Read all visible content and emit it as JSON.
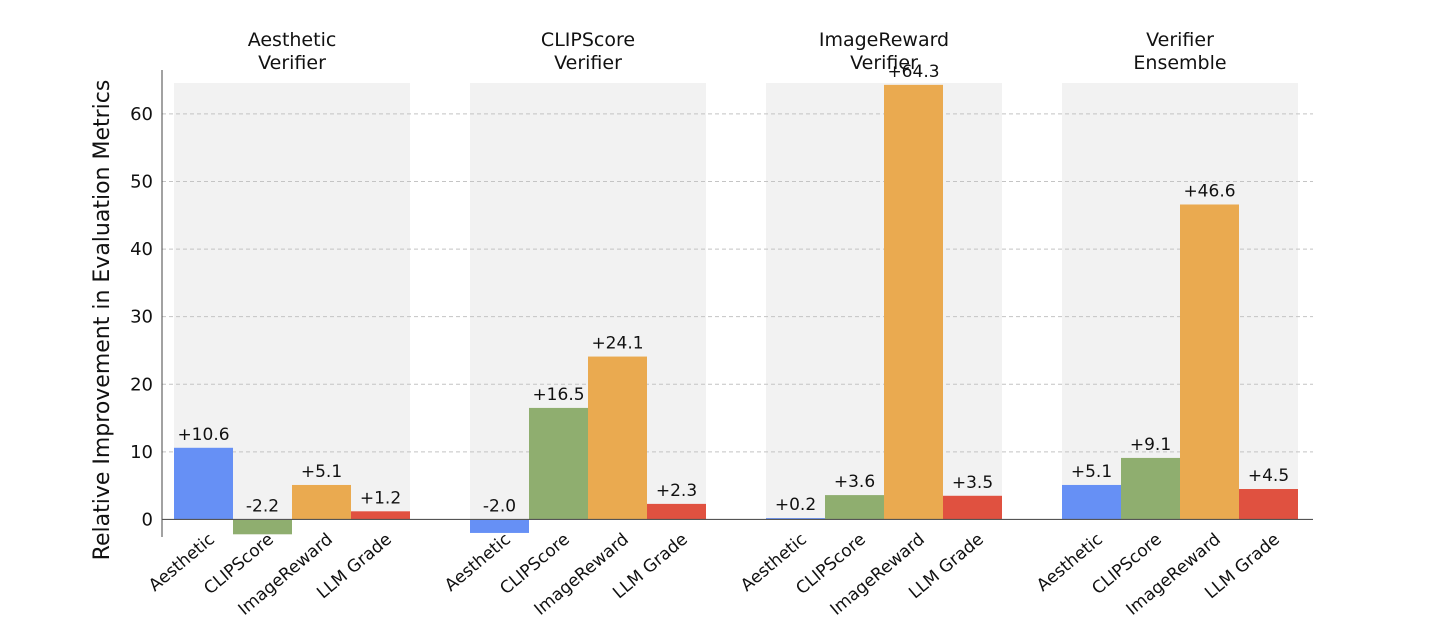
{
  "chart_data": {
    "type": "bar",
    "ylabel": "Relative Improvement in Evaluation Metrics",
    "ylim": [
      -2.6,
      66.5
    ],
    "yticks": [
      0,
      10,
      20,
      30,
      40,
      50,
      60
    ],
    "grid": "y-dashed",
    "categories": [
      "Aesthetic",
      "CLIPScore",
      "ImageReward",
      "LLM Grade"
    ],
    "colors": [
      "#6690f5",
      "#8fae6f",
      "#eaaa50",
      "#e05140"
    ],
    "background_color": "#f2f2f2",
    "groups": [
      {
        "title_lines": [
          "Aesthetic",
          "Verifier"
        ],
        "values": [
          10.6,
          -2.2,
          5.1,
          1.2
        ],
        "labels": [
          "+10.6",
          "-2.2",
          "+5.1",
          "+1.2"
        ]
      },
      {
        "title_lines": [
          "CLIPScore",
          "Verifier"
        ],
        "values": [
          -2.0,
          16.5,
          24.1,
          2.3
        ],
        "labels": [
          "-2.0",
          "+16.5",
          "+24.1",
          "+2.3"
        ]
      },
      {
        "title_lines": [
          "ImageReward",
          "Verifier"
        ],
        "values": [
          0.2,
          3.6,
          64.3,
          3.5
        ],
        "labels": [
          "+0.2",
          "+3.6",
          "+64.3",
          "+3.5"
        ]
      },
      {
        "title_lines": [
          "Verifier",
          "Ensemble"
        ],
        "values": [
          5.1,
          9.1,
          46.6,
          4.5
        ],
        "labels": [
          "+5.1",
          "+9.1",
          "+46.6",
          "+4.5"
        ]
      }
    ]
  }
}
